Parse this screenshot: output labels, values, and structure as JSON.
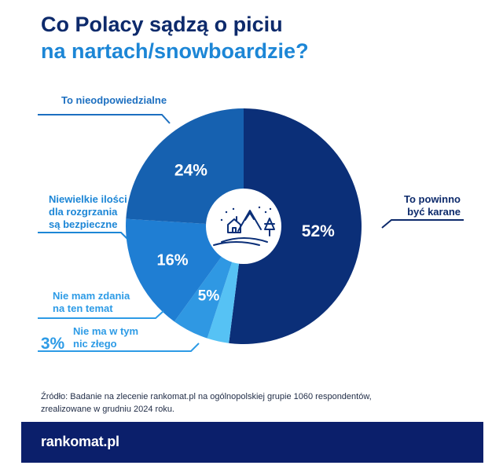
{
  "title_line1": "Co Polacy sądzą o piciu",
  "title_line2": "na nartach/snowboardzie?",
  "colors": {
    "navy": "#0d2a6b",
    "accent_blue": "#1c86d6",
    "footer_bg": "#0b1f6b"
  },
  "chart_data": {
    "type": "pie",
    "slices": [
      {
        "label": "To powinno|być karane",
        "value": 52,
        "value_label": "52%",
        "color": "#0b2f78"
      },
      {
        "label": "Nie ma w tym|nic złego",
        "value": 3,
        "value_label": "3%",
        "color": "#56c2f4"
      },
      {
        "label": "Nie mam zdania|na ten temat",
        "value": 5,
        "value_label": "5%",
        "color": "#2f98e3"
      },
      {
        "label": "Niewielkie ilości|dla rozgrzania|są bezpieczne",
        "value": 16,
        "value_label": "16%",
        "color": "#1f7ed3"
      },
      {
        "label": "To nieodpowiedzialne",
        "value": 24,
        "value_label": "24%",
        "color": "#1661b0"
      }
    ]
  },
  "source": "Źródło: Badanie na zlecenie rankomat.pl na ogólnopolskiej grupie 1060 respondentów, zrealizowane w grudniu 2024 roku.",
  "logo": "rankomat.pl"
}
